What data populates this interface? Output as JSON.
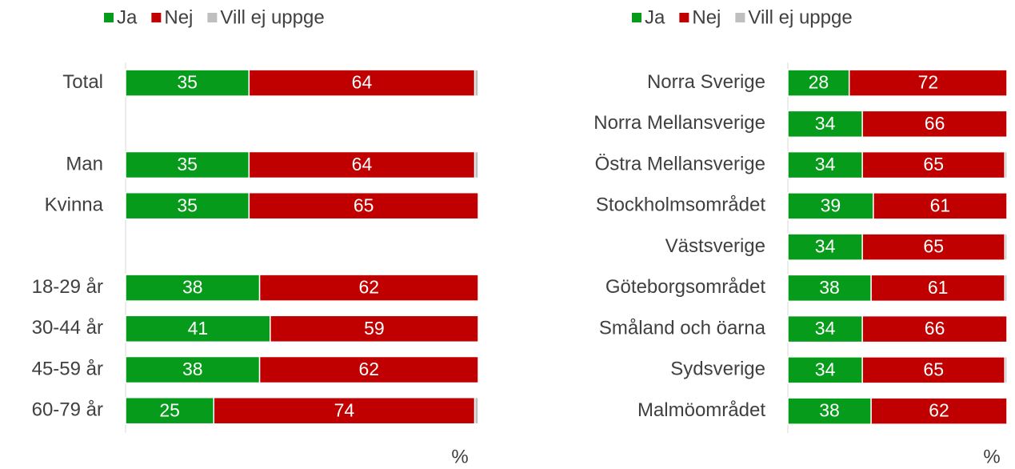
{
  "chart_data": [
    {
      "type": "stacked_barh",
      "x_label": "%",
      "xlim": [
        0,
        100
      ],
      "categories": [
        "Total",
        null,
        "Man",
        "Kvinna",
        null,
        "18-29 år",
        "30-44 år",
        "45-59 år",
        "60-79 år"
      ],
      "series": [
        {
          "name": "Ja",
          "color": "#079b1b",
          "values": [
            35,
            null,
            35,
            35,
            null,
            38,
            41,
            38,
            25
          ]
        },
        {
          "name": "Nej",
          "color": "#c00000",
          "values": [
            64,
            null,
            64,
            65,
            null,
            62,
            59,
            62,
            74
          ]
        },
        {
          "name": "Vill ej uppge",
          "color": "#bfbfbf",
          "values": [
            1,
            null,
            1,
            0,
            null,
            0,
            0,
            0,
            1
          ]
        }
      ]
    },
    {
      "type": "stacked_barh",
      "x_label": "%",
      "xlim": [
        0,
        100
      ],
      "categories": [
        "Norra Sverige",
        "Norra Mellansverige",
        "Östra Mellansverige",
        "Stockholmsområdet",
        "Västsverige",
        "Göteborgsområdet",
        "Småland och öarna",
        "Sydsverige",
        "Malmöområdet"
      ],
      "series": [
        {
          "name": "Ja",
          "color": "#079b1b",
          "values": [
            28,
            34,
            34,
            39,
            34,
            38,
            34,
            34,
            38
          ]
        },
        {
          "name": "Nej",
          "color": "#c00000",
          "values": [
            72,
            66,
            65,
            61,
            65,
            61,
            66,
            65,
            62
          ]
        },
        {
          "name": "Vill ej uppge",
          "color": "#bfbfbf",
          "values": [
            0,
            0,
            1,
            0,
            1,
            1,
            0,
            1,
            0
          ]
        }
      ]
    }
  ]
}
